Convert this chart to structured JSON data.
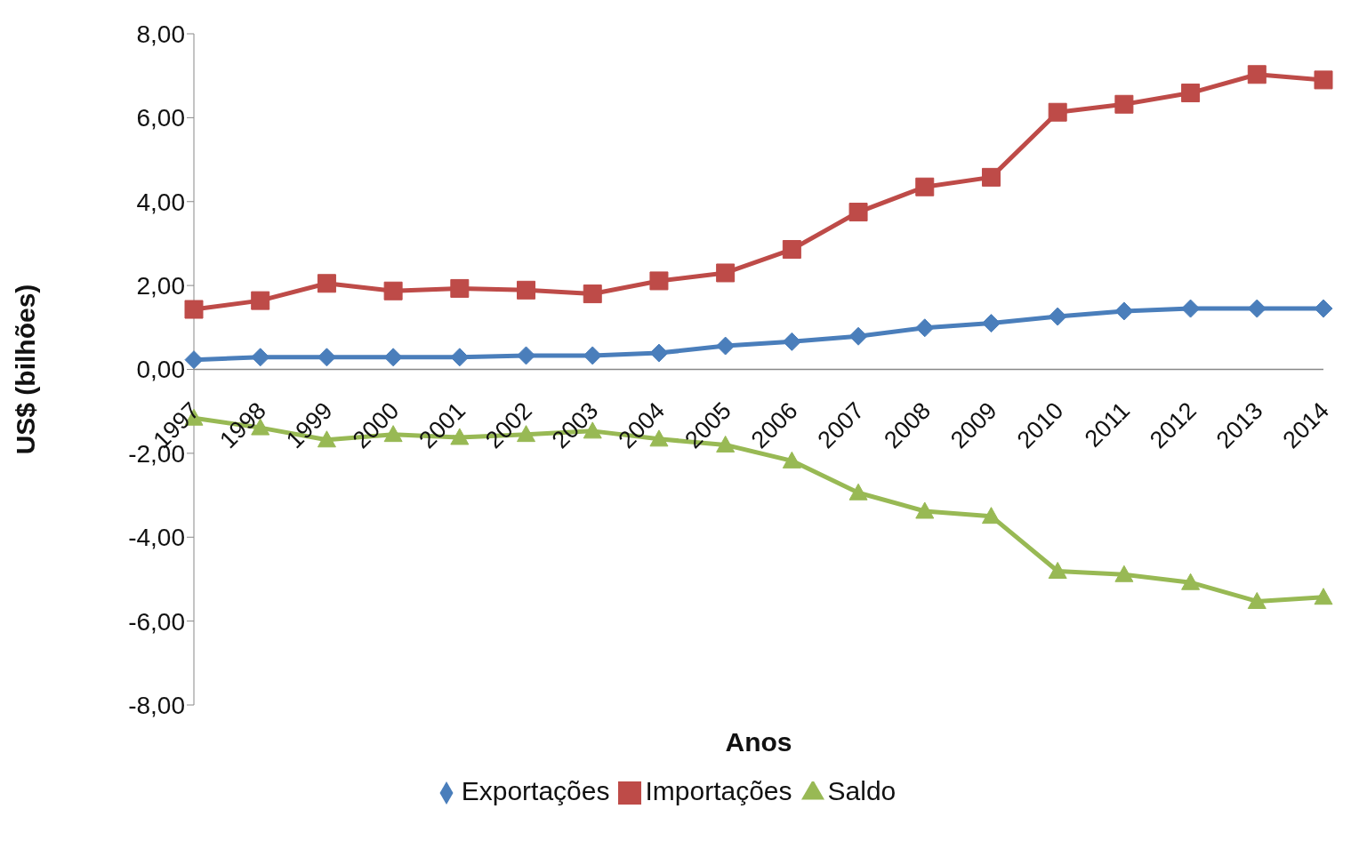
{
  "chart_data": {
    "type": "line",
    "xlabel": "Anos",
    "ylabel": "US$ (bilhões)",
    "categories": [
      "1997",
      "1998",
      "1999",
      "2000",
      "2001",
      "2002",
      "2003",
      "2004",
      "2005",
      "2006",
      "2007",
      "2008",
      "2009",
      "2010",
      "2011",
      "2012",
      "2013",
      "2014"
    ],
    "series": [
      {
        "name": "Exportações",
        "color": "#4a7ebb",
        "marker": "diamond",
        "values": [
          0.23,
          0.29,
          0.29,
          0.29,
          0.29,
          0.33,
          0.33,
          0.39,
          0.56,
          0.66,
          0.79,
          0.99,
          1.1,
          1.26,
          1.39,
          1.45,
          1.45,
          1.45
        ]
      },
      {
        "name": "Importações",
        "color": "#be4b48",
        "marker": "square",
        "values": [
          1.43,
          1.64,
          2.05,
          1.87,
          1.93,
          1.89,
          1.8,
          2.11,
          2.3,
          2.86,
          3.75,
          4.35,
          4.58,
          6.13,
          6.32,
          6.59,
          7.03,
          6.9
        ]
      },
      {
        "name": "Saldo",
        "color": "#98b954",
        "marker": "triangle",
        "values": [
          -1.16,
          -1.39,
          -1.68,
          -1.55,
          -1.62,
          -1.55,
          -1.47,
          -1.66,
          -1.8,
          -2.18,
          -2.94,
          -3.38,
          -3.5,
          -4.81,
          -4.89,
          -5.08,
          -5.53,
          -5.43
        ]
      }
    ],
    "ylim": [
      -8,
      8
    ],
    "yticks": [
      {
        "value": -8,
        "label": "-8,00"
      },
      {
        "value": -6,
        "label": "-6,00"
      },
      {
        "value": -4,
        "label": "-4,00"
      },
      {
        "value": -2,
        "label": "-2,00"
      },
      {
        "value": 0,
        "label": "0,00"
      },
      {
        "value": 2,
        "label": "2,00"
      },
      {
        "value": 4,
        "label": "4,00"
      },
      {
        "value": 6,
        "label": "6,00"
      },
      {
        "value": 8,
        "label": "8,00"
      }
    ],
    "grid": false,
    "legend": "bottom",
    "line_style": "solid"
  }
}
